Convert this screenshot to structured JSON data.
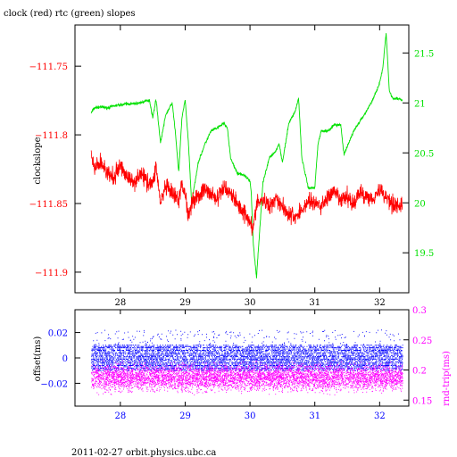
{
  "header": {
    "title": "clock (red) rtc (green) slopes",
    "footer": "2011-02-27  orbit.physics.ubc.ca"
  },
  "colors": {
    "clock": "#ff0000",
    "rtc": "#00e000",
    "offset": "#0000ff",
    "rndtrip": "#ff00ff",
    "frame": "#000000"
  },
  "chart_data": [
    {
      "type": "line",
      "xlim": [
        27.3,
        32.45
      ],
      "xticks": [
        "28",
        "29",
        "30",
        "31",
        "32"
      ],
      "ylabel": "clockslope",
      "ylim": [
        -111.915,
        -111.72
      ],
      "yticks": [
        "-111.75",
        "-111.8",
        "-111.85",
        "-111.9"
      ],
      "y2lim": [
        19.1,
        21.78
      ],
      "y2ticks": [
        "19.5",
        "20",
        "20.5",
        "21",
        "21.5"
      ],
      "series": [
        {
          "x": [
            27.55,
            27.6,
            27.7,
            27.8,
            27.9,
            28.0,
            28.1,
            28.2,
            28.3,
            28.4,
            28.5,
            28.55,
            28.62,
            28.7,
            28.8,
            28.9,
            28.95,
            29.0,
            29.05,
            29.1,
            29.2,
            29.3,
            29.4,
            29.5,
            29.6,
            29.7,
            29.8,
            29.9,
            30.0,
            30.05,
            30.1,
            30.2,
            30.3,
            30.4,
            30.5,
            30.6,
            30.7,
            30.8,
            30.9,
            31.0,
            31.1,
            31.2,
            31.3,
            31.4,
            31.5,
            31.6,
            31.7,
            31.8,
            31.9,
            32.0,
            32.1,
            32.2,
            32.3,
            32.35
          ],
          "y": [
            -111.815,
            -111.825,
            -111.82,
            -111.828,
            -111.832,
            -111.822,
            -111.83,
            -111.835,
            -111.828,
            -111.833,
            -111.836,
            -111.822,
            -111.85,
            -111.838,
            -111.843,
            -111.848,
            -111.836,
            -111.842,
            -111.86,
            -111.848,
            -111.845,
            -111.84,
            -111.843,
            -111.847,
            -111.838,
            -111.842,
            -111.85,
            -111.856,
            -111.862,
            -111.87,
            -111.85,
            -111.848,
            -111.852,
            -111.845,
            -111.852,
            -111.858,
            -111.86,
            -111.855,
            -111.848,
            -111.85,
            -111.852,
            -111.845,
            -111.842,
            -111.848,
            -111.845,
            -111.85,
            -111.842,
            -111.845,
            -111.846,
            -111.84,
            -111.845,
            -111.85,
            -111.852,
            -111.85
          ]
        },
        {
          "x": [
            27.55,
            27.6,
            27.7,
            27.8,
            27.9,
            28.0,
            28.1,
            28.2,
            28.3,
            28.4,
            28.45,
            28.5,
            28.55,
            28.62,
            28.7,
            28.8,
            28.85,
            28.9,
            28.95,
            29.0,
            29.05,
            29.1,
            29.2,
            29.3,
            29.4,
            29.5,
            29.6,
            29.65,
            29.7,
            29.8,
            29.9,
            30.0,
            30.02,
            30.05,
            30.1,
            30.2,
            30.3,
            30.4,
            30.45,
            30.5,
            30.6,
            30.7,
            30.75,
            30.8,
            30.9,
            31.0,
            31.05,
            31.1,
            31.2,
            31.3,
            31.4,
            31.45,
            31.5,
            31.6,
            31.7,
            31.8,
            31.9,
            31.95,
            32.0,
            32.05,
            32.1,
            32.15,
            32.2,
            32.3,
            32.35
          ],
          "y": [
            20.9,
            20.95,
            20.96,
            20.95,
            20.97,
            20.98,
            20.99,
            20.99,
            21.0,
            21.02,
            21.03,
            20.85,
            21.04,
            20.6,
            20.88,
            21.0,
            20.7,
            20.3,
            20.85,
            21.03,
            20.6,
            20.0,
            20.4,
            20.58,
            20.72,
            20.75,
            20.8,
            20.75,
            20.45,
            20.3,
            20.28,
            20.22,
            20.1,
            19.6,
            19.25,
            20.2,
            20.45,
            20.52,
            20.6,
            20.4,
            20.8,
            20.92,
            21.05,
            20.45,
            20.15,
            20.15,
            20.6,
            20.72,
            20.72,
            20.78,
            20.78,
            20.48,
            20.56,
            20.72,
            20.82,
            20.92,
            21.04,
            21.12,
            21.2,
            21.35,
            21.7,
            21.12,
            21.05,
            21.04,
            21.02
          ]
        }
      ]
    },
    {
      "type": "scatter",
      "xlim": [
        27.3,
        32.45
      ],
      "xticks": [
        "28",
        "29",
        "30",
        "31",
        "32"
      ],
      "ylabel": "offset(ms)",
      "ylim": [
        -0.038,
        0.038
      ],
      "yticks": [
        "0.02",
        "0",
        "-0.02"
      ],
      "y2label": "rnd-trip(ms)",
      "y2lim": [
        0.14,
        0.3
      ],
      "y2ticks": [
        "0.3",
        "0.25",
        "0.2",
        "0.15"
      ],
      "offset_band": {
        "x": [
          27.55,
          32.35
        ],
        "y": [
          -0.01,
          0.01
        ]
      },
      "rndtrip_band": {
        "x": [
          27.55,
          32.35
        ],
        "y": [
          0.16,
          0.215
        ]
      }
    }
  ]
}
